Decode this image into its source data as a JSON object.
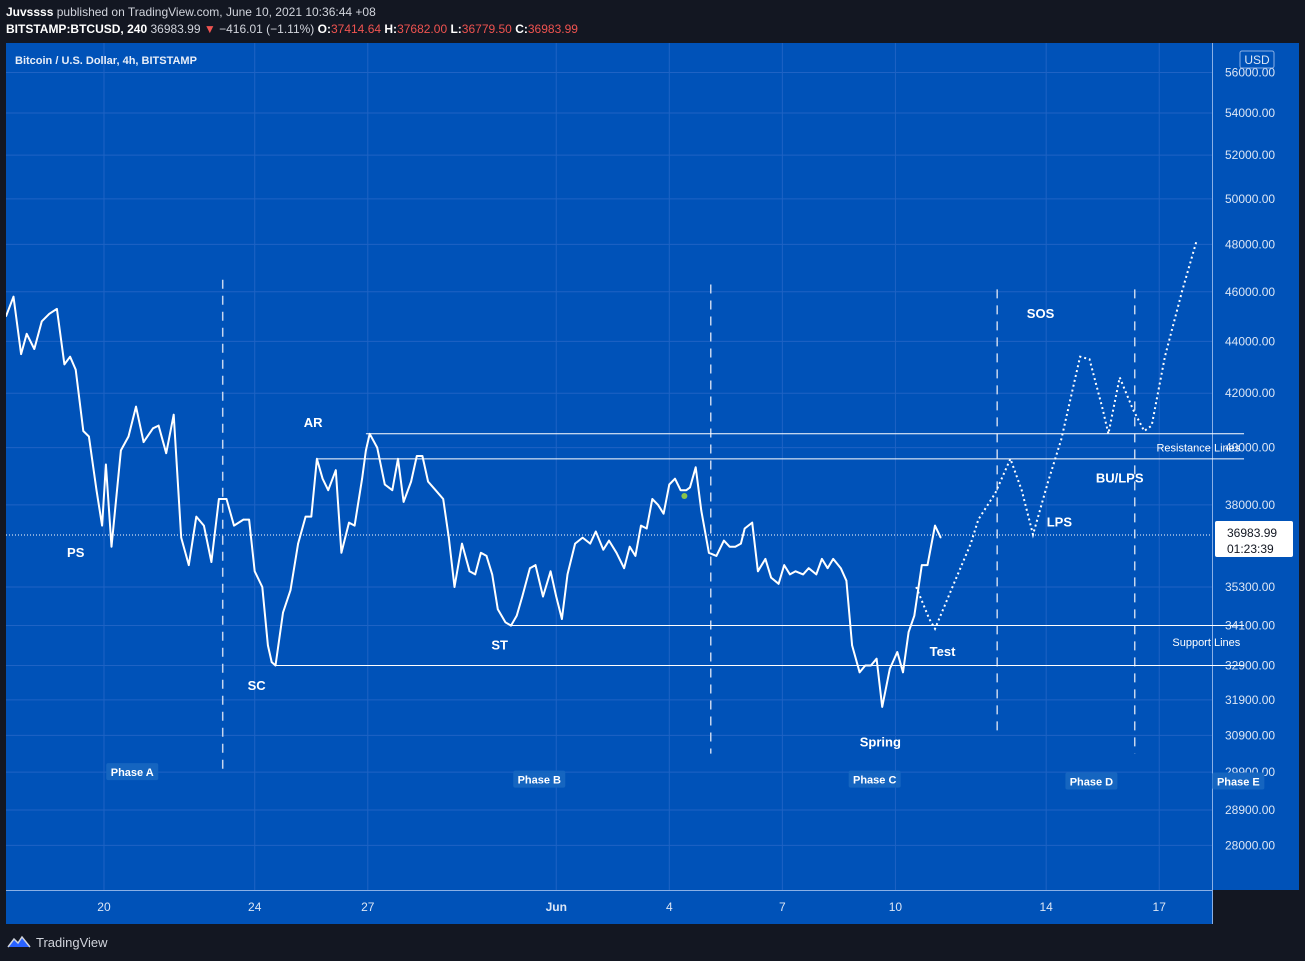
{
  "header": {
    "publisher": "Juvssss",
    "published_text": "published on TradingView.com, June 10, 2021 10:36:44 +08",
    "symbol": "BITSTAMP:BTCUSD, 240",
    "last_price": "36983.99",
    "change_arrow": "▼",
    "change": "−416.01 (−1.11%)",
    "open_label": "O:",
    "open": "37414.64",
    "high_label": "H:",
    "high": "37682.00",
    "low_label": "L:",
    "low": "36779.50",
    "close_label": "C:",
    "close": "36983.99"
  },
  "chart_data": {
    "type": "line",
    "title": "Bitcoin / U.S. Dollar, 4h, BITSTAMP",
    "currency": "USD",
    "colors": {
      "background": "#0052b8",
      "line": "#ffffff",
      "frame": "#131722",
      "marker": "#8bc34a"
    },
    "x_ticks": [
      {
        "label": "20",
        "x": 20
      },
      {
        "label": "24",
        "x": 24
      },
      {
        "label": "27",
        "x": 27
      },
      {
        "label": "Jun",
        "x": 32
      },
      {
        "label": "4",
        "x": 35
      },
      {
        "label": "7",
        "x": 38
      },
      {
        "label": "10",
        "x": 41
      },
      {
        "label": "14",
        "x": 45
      },
      {
        "label": "17",
        "x": 48
      }
    ],
    "xlim": [
      17.4,
      49.4
    ],
    "y_ticks": [
      56000,
      54000,
      52000,
      50000,
      48000,
      46000,
      44000,
      42000,
      40000,
      38000,
      35300,
      34100,
      32900,
      31900,
      30900,
      29900,
      28900,
      28000
    ],
    "y_tick_labels": [
      "56000.00",
      "54000.00",
      "52000.00",
      "50000.00",
      "48000.00",
      "46000.00",
      "44000.00",
      "42000.00",
      "40000.00",
      "38000.00",
      "35300.00",
      "34100.00",
      "32900.00",
      "31900.00",
      "30900.00",
      "29900.00",
      "28900.00",
      "28000.00"
    ],
    "ylim": [
      26900,
      57500
    ],
    "log_scale": true,
    "series": [
      {
        "values": [
          [
            17.4,
            45000
          ],
          [
            17.6,
            45800
          ],
          [
            17.8,
            43500
          ],
          [
            17.95,
            44300
          ],
          [
            18.15,
            43700
          ],
          [
            18.35,
            44800
          ],
          [
            18.55,
            45100
          ],
          [
            18.75,
            45300
          ],
          [
            18.95,
            43100
          ],
          [
            19.1,
            43400
          ],
          [
            19.25,
            42900
          ],
          [
            19.45,
            40600
          ],
          [
            19.6,
            40400
          ],
          [
            19.8,
            38500
          ],
          [
            19.95,
            37300
          ],
          [
            20.05,
            39400
          ],
          [
            20.2,
            36600
          ],
          [
            20.45,
            39900
          ],
          [
            20.65,
            40400
          ],
          [
            20.85,
            41500
          ],
          [
            21.05,
            40200
          ],
          [
            21.3,
            40700
          ],
          [
            21.45,
            40800
          ],
          [
            21.65,
            39800
          ],
          [
            21.85,
            41200
          ],
          [
            22.05,
            36900
          ],
          [
            22.25,
            36000
          ],
          [
            22.45,
            37600
          ],
          [
            22.65,
            37300
          ],
          [
            22.85,
            36100
          ],
          [
            23.05,
            38200
          ],
          [
            23.25,
            38200
          ],
          [
            23.45,
            37300
          ],
          [
            23.7,
            37500
          ],
          [
            23.85,
            37500
          ],
          [
            24.0,
            35800
          ],
          [
            24.2,
            35300
          ],
          [
            24.35,
            33500
          ],
          [
            24.45,
            33000
          ],
          [
            24.55,
            32900
          ],
          [
            24.75,
            34500
          ],
          [
            24.95,
            35200
          ],
          [
            25.15,
            36700
          ],
          [
            25.35,
            37600
          ],
          [
            25.5,
            37600
          ],
          [
            25.65,
            39600
          ],
          [
            25.8,
            38900
          ],
          [
            25.95,
            38500
          ],
          [
            26.15,
            39200
          ],
          [
            26.3,
            36400
          ],
          [
            26.5,
            37400
          ],
          [
            26.65,
            37300
          ],
          [
            26.85,
            38900
          ],
          [
            26.95,
            39900
          ],
          [
            27.05,
            40500
          ],
          [
            27.25,
            40000
          ],
          [
            27.45,
            38700
          ],
          [
            27.65,
            38500
          ],
          [
            27.8,
            39600
          ],
          [
            27.95,
            38100
          ],
          [
            28.15,
            38800
          ],
          [
            28.3,
            39700
          ],
          [
            28.45,
            39700
          ],
          [
            28.6,
            38800
          ],
          [
            28.8,
            38500
          ],
          [
            29.0,
            38200
          ],
          [
            29.15,
            36900
          ],
          [
            29.3,
            35300
          ],
          [
            29.5,
            36700
          ],
          [
            29.7,
            35800
          ],
          [
            29.85,
            35700
          ],
          [
            30.0,
            36400
          ],
          [
            30.15,
            36300
          ],
          [
            30.3,
            35700
          ],
          [
            30.45,
            34600
          ],
          [
            30.65,
            34200
          ],
          [
            30.8,
            34100
          ],
          [
            30.95,
            34400
          ],
          [
            31.1,
            35000
          ],
          [
            31.3,
            35900
          ],
          [
            31.45,
            36000
          ],
          [
            31.65,
            35000
          ],
          [
            31.85,
            35800
          ],
          [
            32.0,
            35000
          ],
          [
            32.15,
            34300
          ],
          [
            32.3,
            35700
          ],
          [
            32.5,
            36700
          ],
          [
            32.7,
            36900
          ],
          [
            32.9,
            36700
          ],
          [
            33.05,
            37100
          ],
          [
            33.25,
            36500
          ],
          [
            33.4,
            36800
          ],
          [
            33.6,
            36400
          ],
          [
            33.8,
            35900
          ],
          [
            33.95,
            36600
          ],
          [
            34.1,
            36300
          ],
          [
            34.25,
            37300
          ],
          [
            34.4,
            37200
          ],
          [
            34.55,
            38200
          ],
          [
            34.7,
            38000
          ],
          [
            34.85,
            37700
          ],
          [
            35.0,
            38700
          ],
          [
            35.15,
            38900
          ],
          [
            35.3,
            38500
          ],
          [
            35.45,
            38500
          ],
          [
            35.55,
            38600
          ],
          [
            35.7,
            39300
          ],
          [
            35.85,
            37800
          ],
          [
            36.05,
            36400
          ],
          [
            36.25,
            36300
          ],
          [
            36.45,
            36800
          ],
          [
            36.6,
            36600
          ],
          [
            36.75,
            36600
          ],
          [
            36.9,
            36700
          ],
          [
            37.0,
            37200
          ],
          [
            37.2,
            37400
          ],
          [
            37.35,
            35800
          ],
          [
            37.55,
            36200
          ],
          [
            37.7,
            35600
          ],
          [
            37.9,
            35400
          ],
          [
            38.05,
            36000
          ],
          [
            38.2,
            35700
          ],
          [
            38.35,
            35800
          ],
          [
            38.55,
            35700
          ],
          [
            38.7,
            35900
          ],
          [
            38.9,
            35700
          ],
          [
            39.05,
            36200
          ],
          [
            39.2,
            35900
          ],
          [
            39.35,
            36200
          ],
          [
            39.55,
            35900
          ],
          [
            39.7,
            35500
          ],
          [
            39.85,
            33500
          ],
          [
            40.05,
            32700
          ],
          [
            40.2,
            32900
          ],
          [
            40.35,
            32900
          ],
          [
            40.5,
            33100
          ],
          [
            40.65,
            31700
          ],
          [
            40.85,
            32800
          ],
          [
            41.05,
            33300
          ],
          [
            41.2,
            32700
          ],
          [
            41.35,
            33900
          ],
          [
            41.5,
            34400
          ],
          [
            41.7,
            36000
          ],
          [
            41.85,
            36000
          ],
          [
            42.05,
            37300
          ],
          [
            42.2,
            36900
          ]
        ]
      }
    ],
    "projection": [
      [
        41.55,
        35300
      ],
      [
        41.9,
        34300
      ],
      [
        42.05,
        34000
      ],
      [
        42.55,
        35400
      ],
      [
        43.0,
        36700
      ],
      [
        43.2,
        37500
      ],
      [
        43.65,
        38400
      ],
      [
        44.05,
        39600
      ],
      [
        44.35,
        38500
      ],
      [
        44.65,
        37000
      ],
      [
        45.05,
        38800
      ],
      [
        45.4,
        40300
      ],
      [
        45.9,
        43400
      ],
      [
        46.15,
        43300
      ],
      [
        46.5,
        41400
      ],
      [
        46.65,
        40500
      ],
      [
        46.95,
        42600
      ],
      [
        47.3,
        41400
      ],
      [
        47.6,
        40600
      ],
      [
        47.8,
        40800
      ],
      [
        48.15,
        43400
      ],
      [
        48.6,
        46000
      ],
      [
        49.0,
        48200
      ]
    ],
    "marker": [
      35.4,
      38300
    ],
    "levels": [
      {
        "name": "resistance-upper",
        "y": 40500,
        "x1": 26.95,
        "x2": 50.25
      },
      {
        "name": "resistance-lower",
        "y": 39600,
        "x1": 25.65,
        "x2": 50.25
      },
      {
        "name": "support-upper",
        "y": 34100,
        "x1": 30.8,
        "x2": 50.25
      },
      {
        "name": "support-lower",
        "y": 32900,
        "x1": 24.55,
        "x2": 50.25
      }
    ],
    "phase_dividers": [
      {
        "x": 23.15,
        "y_top": 46500,
        "y_bottom": 29900
      },
      {
        "x": 36.1,
        "y_top": 46300,
        "y_bottom": 30400
      },
      {
        "x": 43.7,
        "y_top": 46100,
        "y_bottom": 30900
      },
      {
        "x": 47.35,
        "y_top": 46100,
        "y_bottom": 30400
      }
    ],
    "annotations": [
      {
        "text": "PS",
        "x": 19.25,
        "y": 36400
      },
      {
        "text": "SC",
        "x": 24.05,
        "y": 32300
      },
      {
        "text": "AR",
        "x": 25.55,
        "y": 40900
      },
      {
        "text": "ST",
        "x": 30.5,
        "y": 33500
      },
      {
        "text": "Spring",
        "x": 40.6,
        "y": 30700
      },
      {
        "text": "Test",
        "x": 42.25,
        "y": 33300
      },
      {
        "text": "LPS",
        "x": 45.35,
        "y": 37400
      },
      {
        "text": "BU/LPS",
        "x": 46.95,
        "y": 38900
      },
      {
        "text": "SOS",
        "x": 44.85,
        "y": 45100
      }
    ],
    "level_labels": [
      {
        "text": "Resistance Lines",
        "x": 50.15,
        "y": 40000
      },
      {
        "text": "Support Lines",
        "x": 50.15,
        "y": 33600
      }
    ],
    "phases": [
      {
        "text": "Phase A",
        "x": 20.75,
        "y": 29900
      },
      {
        "text": "Phase B",
        "x": 31.55,
        "y": 29700
      },
      {
        "text": "Phase C",
        "x": 40.45,
        "y": 29700
      },
      {
        "text": "Phase D",
        "x": 46.2,
        "y": 29650
      },
      {
        "text": "Phase E",
        "x": 50.1,
        "y": 29650
      }
    ],
    "price_label": {
      "value": 36983.99,
      "price": "36983.99",
      "countdown": "01:23:39"
    }
  },
  "footer": {
    "brand": "TradingView"
  }
}
